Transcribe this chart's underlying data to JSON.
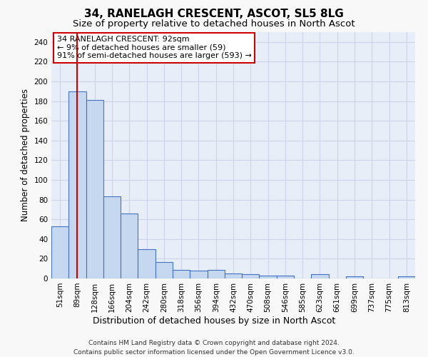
{
  "title": "34, RANELAGH CRESCENT, ASCOT, SL5 8LG",
  "subtitle": "Size of property relative to detached houses in North Ascot",
  "xlabel": "Distribution of detached houses by size in North Ascot",
  "ylabel": "Number of detached properties",
  "categories": [
    "51sqm",
    "89sqm",
    "128sqm",
    "166sqm",
    "204sqm",
    "242sqm",
    "280sqm",
    "318sqm",
    "356sqm",
    "394sqm",
    "432sqm",
    "470sqm",
    "508sqm",
    "546sqm",
    "585sqm",
    "623sqm",
    "661sqm",
    "699sqm",
    "737sqm",
    "775sqm",
    "813sqm"
  ],
  "values": [
    53,
    190,
    181,
    83,
    66,
    30,
    17,
    9,
    8,
    9,
    5,
    4,
    3,
    3,
    0,
    4,
    0,
    2,
    0,
    0,
    2
  ],
  "bar_color": "#c5d8f0",
  "bar_edge_color": "#4472c4",
  "vline_x": 1,
  "vline_color": "#cc0000",
  "annotation_line1": "34 RANELAGH CRESCENT: 92sqm",
  "annotation_line2": "← 9% of detached houses are smaller (59)",
  "annotation_line3": "91% of semi-detached houses are larger (593) →",
  "annotation_box_color": "#ffffff",
  "annotation_box_edge": "#cc0000",
  "ylim": [
    0,
    250
  ],
  "yticks": [
    0,
    20,
    40,
    60,
    80,
    100,
    120,
    140,
    160,
    180,
    200,
    220,
    240
  ],
  "grid_color": "#ccd5e8",
  "bg_color": "#e8eef8",
  "fig_bg_color": "#f8f8f8",
  "footer": "Contains HM Land Registry data © Crown copyright and database right 2024.\nContains public sector information licensed under the Open Government Licence v3.0.",
  "title_fontsize": 11,
  "subtitle_fontsize": 9.5,
  "xlabel_fontsize": 9,
  "ylabel_fontsize": 8.5,
  "tick_fontsize": 7.5,
  "annot_fontsize": 8,
  "footer_fontsize": 6.5
}
